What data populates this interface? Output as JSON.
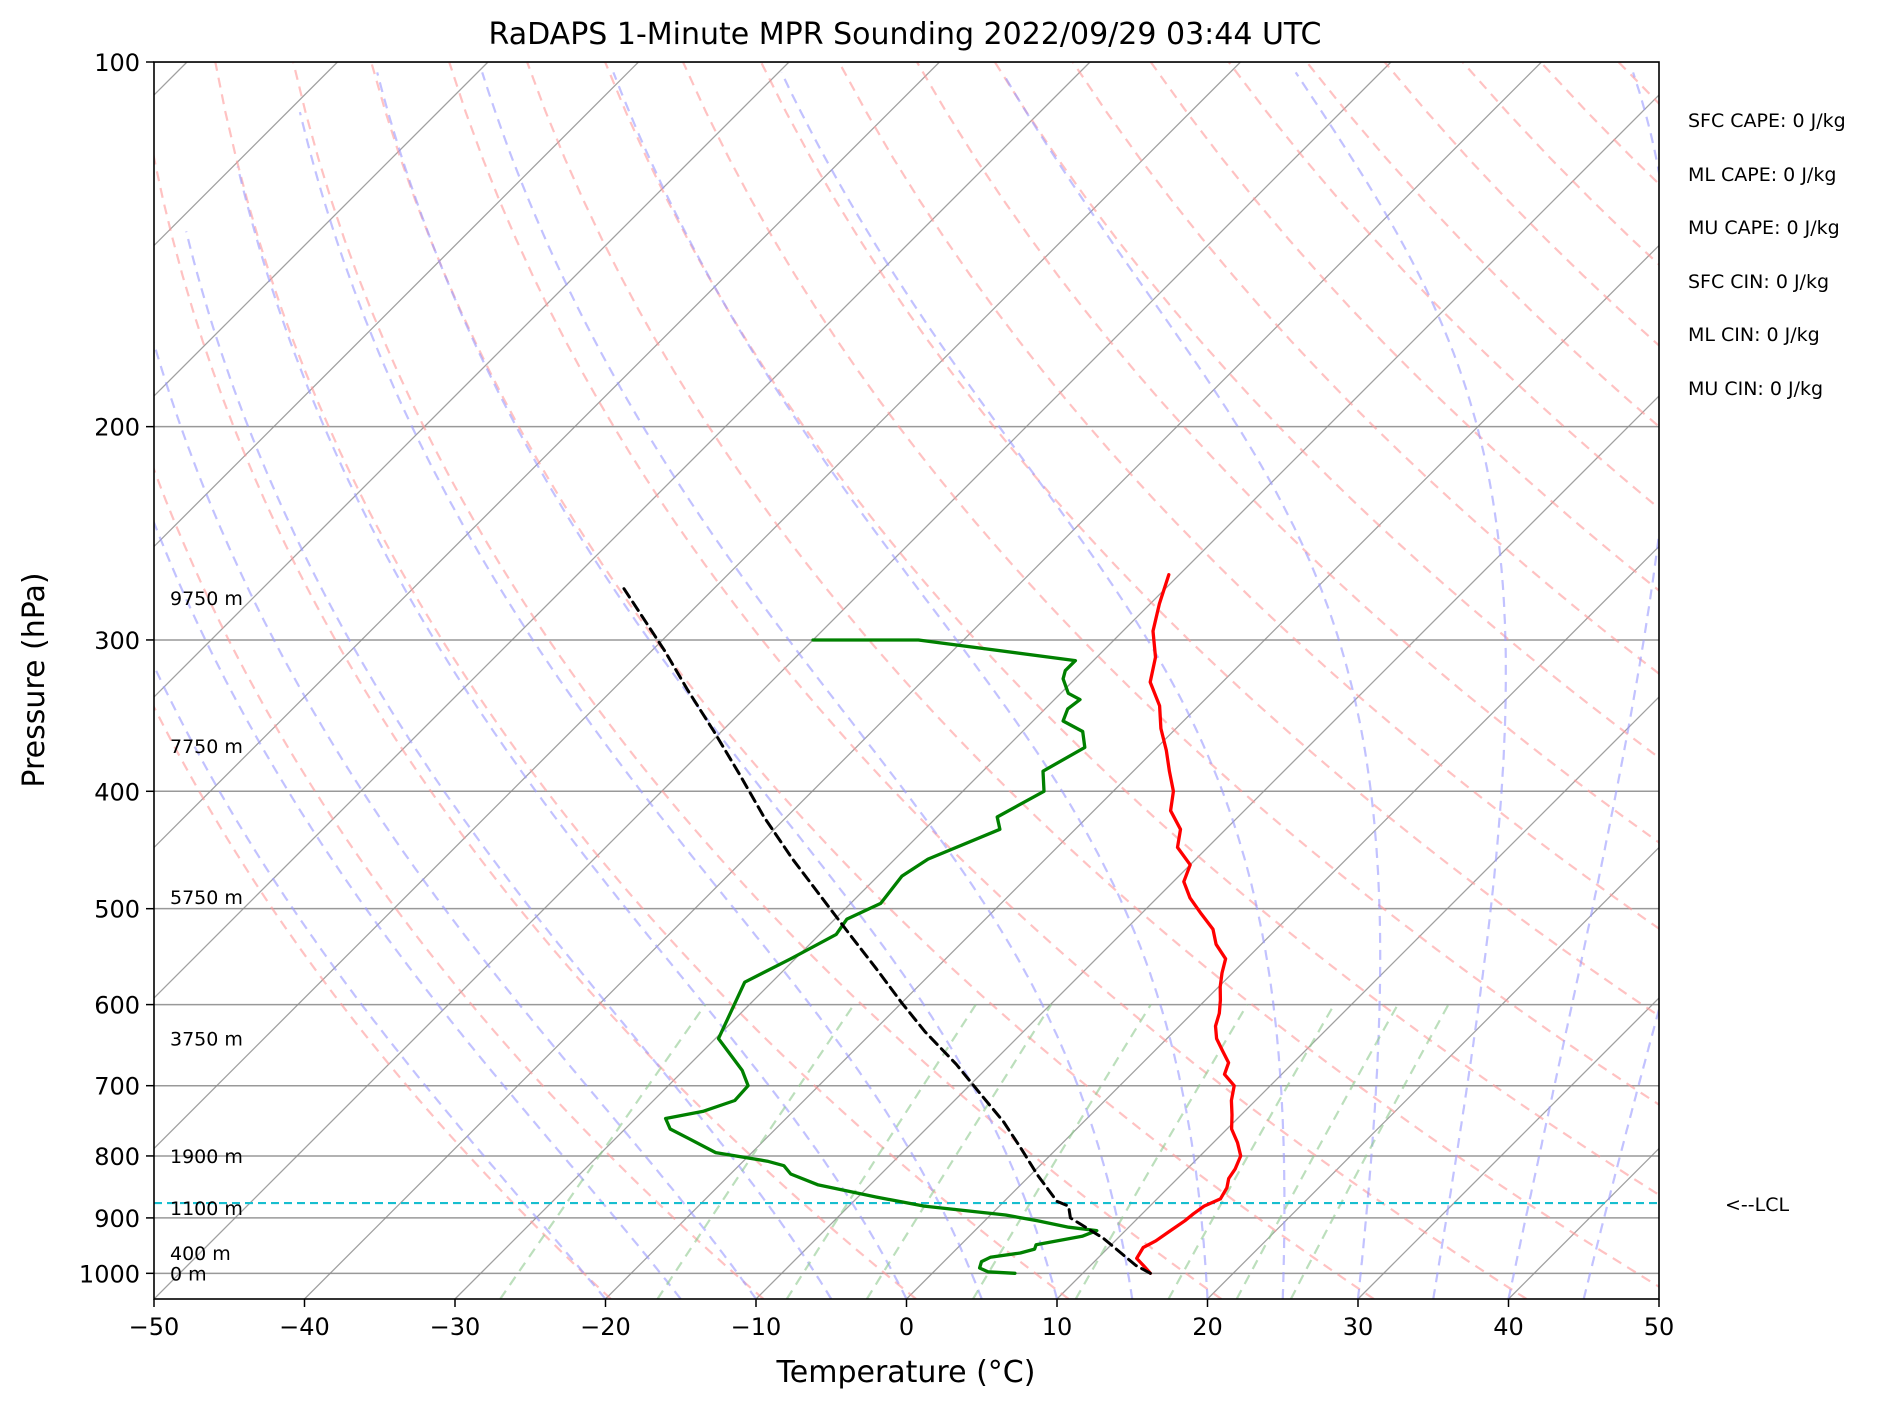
{
  "chart_data": {
    "type": "line",
    "chart_kind": "skew-T log-P sounding",
    "title": "RaDAPS 1-Minute MPR Sounding 2022/09/29 03:44 UTC",
    "xlabel": "Temperature (°C)",
    "ylabel": "Pressure (hPa)",
    "xlim": [
      -50,
      50
    ],
    "ylim": [
      1050,
      100
    ],
    "yscale": "log",
    "skew_degrees": 45,
    "x_ticks": [
      -50,
      -40,
      -30,
      -20,
      -10,
      0,
      10,
      20,
      30,
      40,
      50
    ],
    "x_tick_labels": [
      "−50",
      "−40",
      "−30",
      "−20",
      "−10",
      "0",
      "10",
      "20",
      "30",
      "40",
      "50"
    ],
    "y_ticks": [
      100,
      200,
      300,
      400,
      500,
      600,
      700,
      800,
      900,
      1000
    ],
    "y_tick_labels": [
      "100",
      "200",
      "300",
      "400",
      "500",
      "600",
      "700",
      "800",
      "900",
      "1000"
    ],
    "grid": true,
    "colors": {
      "temperature": "#ff0000",
      "dewpoint": "#008000",
      "parcel": "#000000",
      "lcl": "#17becf",
      "dry_adiabat": "#ff9999",
      "moist_adiabat": "#9999ff",
      "mixing_ratio": "#8fc98f",
      "isotherm": "#888888",
      "isobar": "#999999"
    },
    "series": [
      {
        "role": "temperature",
        "points": [
          [
            14.5,
            1000
          ],
          [
            13.5,
            985
          ],
          [
            12.6,
            972
          ],
          [
            12.3,
            952
          ],
          [
            12.7,
            940
          ],
          [
            13.0,
            922
          ],
          [
            13.3,
            905
          ],
          [
            13.4,
            893
          ],
          [
            13.6,
            880
          ],
          [
            14.2,
            868
          ],
          [
            13.9,
            850
          ],
          [
            13.4,
            835
          ],
          [
            13.2,
            820
          ],
          [
            12.7,
            800
          ],
          [
            11.6,
            780
          ],
          [
            10.3,
            760
          ],
          [
            9.4,
            740
          ],
          [
            8.4,
            720
          ],
          [
            7.6,
            700
          ],
          [
            6.2,
            685
          ],
          [
            5.7,
            670
          ],
          [
            4.5,
            655
          ],
          [
            3.3,
            640
          ],
          [
            2.4,
            625
          ],
          [
            1.8,
            610
          ],
          [
            1.0,
            595
          ],
          [
            0.1,
            580
          ],
          [
            -0.7,
            565
          ],
          [
            -1.4,
            550
          ],
          [
            -3.0,
            535
          ],
          [
            -4.2,
            520
          ],
          [
            -6.0,
            505
          ],
          [
            -7.8,
            490
          ],
          [
            -9.3,
            475
          ],
          [
            -10.0,
            460
          ],
          [
            -12.0,
            445
          ],
          [
            -13.0,
            430
          ],
          [
            -14.9,
            415
          ],
          [
            -16.0,
            400
          ],
          [
            -17.6,
            385
          ],
          [
            -19.2,
            370
          ],
          [
            -21.0,
            355
          ],
          [
            -22.6,
            340
          ],
          [
            -24.8,
            325
          ],
          [
            -26.1,
            310
          ],
          [
            -28.0,
            295
          ],
          [
            -29.4,
            280
          ],
          [
            -30.7,
            265
          ]
        ]
      },
      {
        "role": "dewpoint",
        "points": [
          [
            5.5,
            1000
          ],
          [
            3.6,
            997
          ],
          [
            2.8,
            990
          ],
          [
            2.5,
            978
          ],
          [
            2.8,
            970
          ],
          [
            4.5,
            962
          ],
          [
            5.2,
            955
          ],
          [
            5.0,
            947
          ],
          [
            7.5,
            932
          ],
          [
            8.1,
            922
          ],
          [
            6.0,
            916
          ],
          [
            3.5,
            905
          ],
          [
            1.0,
            895
          ],
          [
            -5.0,
            880
          ],
          [
            -8.8,
            865
          ],
          [
            -13.5,
            845
          ],
          [
            -16.0,
            828
          ],
          [
            -17.0,
            815
          ],
          [
            -18.4,
            808
          ],
          [
            -22.4,
            795
          ],
          [
            -25.0,
            775
          ],
          [
            -27.0,
            760
          ],
          [
            -28.0,
            745
          ],
          [
            -26.0,
            735
          ],
          [
            -24.6,
            720
          ],
          [
            -24.7,
            700
          ],
          [
            -26.1,
            680
          ],
          [
            -29.8,
            640
          ],
          [
            -31.0,
            600
          ],
          [
            -31.8,
            575
          ],
          [
            -30.3,
            550
          ],
          [
            -28.9,
            525
          ],
          [
            -29.2,
            510
          ],
          [
            -28.0,
            495
          ],
          [
            -28.4,
            470
          ],
          [
            -27.8,
            455
          ],
          [
            -25.0,
            430
          ],
          [
            -26.0,
            420
          ],
          [
            -24.6,
            400
          ],
          [
            -26.0,
            385
          ],
          [
            -24.8,
            368
          ],
          [
            -26.0,
            357
          ],
          [
            -28.0,
            350
          ],
          [
            -28.5,
            342
          ],
          [
            -28.3,
            336
          ],
          [
            -29.5,
            332
          ],
          [
            -30.8,
            323
          ],
          [
            -31.2,
            318
          ],
          [
            -31.2,
            312
          ],
          [
            -43.0,
            300
          ],
          [
            -50.0,
            300
          ]
        ]
      },
      {
        "role": "parcel",
        "points": [
          [
            14.5,
            1000
          ],
          [
            13.0,
            985
          ],
          [
            9.0,
            935
          ],
          [
            5.5,
            900
          ],
          [
            4.6,
            880
          ],
          [
            3.5,
            872
          ],
          [
            0.5,
            830
          ],
          [
            -2.3,
            790
          ],
          [
            -5.3,
            750
          ],
          [
            -8.8,
            710
          ],
          [
            -12.3,
            672
          ],
          [
            -16.5,
            632
          ],
          [
            -20.0,
            598
          ],
          [
            -24.0,
            560
          ],
          [
            -28.0,
            525
          ],
          [
            -32.0,
            492
          ],
          [
            -36.8,
            455
          ],
          [
            -41.5,
            420
          ],
          [
            -46.0,
            387
          ],
          [
            -50.5,
            357
          ],
          [
            -55.0,
            330
          ],
          [
            -59.0,
            307
          ],
          [
            -63.5,
            284
          ],
          [
            -66.0,
            272
          ]
        ]
      }
    ],
    "lcl": {
      "pressure": 875,
      "label": "<--LCL"
    },
    "height_labels": [
      {
        "text": "9750 m",
        "pressure": 277
      },
      {
        "text": "7750 m",
        "pressure": 367
      },
      {
        "text": "5750 m",
        "pressure": 489
      },
      {
        "text": "3750 m",
        "pressure": 640
      },
      {
        "text": "1900 m",
        "pressure": 800
      },
      {
        "text": "1100 m",
        "pressure": 883
      },
      {
        "text": "400 m",
        "pressure": 962
      },
      {
        "text": "0 m",
        "pressure": 1000
      }
    ],
    "stats": [
      "SFC CAPE: 0 J/kg",
      "ML CAPE: 0 J/kg",
      "MU CAPE: 0 J/kg",
      "SFC CIN: 0 J/kg",
      "ML CIN: 0 J/kg",
      "MU CIN: 0 J/kg"
    ]
  }
}
